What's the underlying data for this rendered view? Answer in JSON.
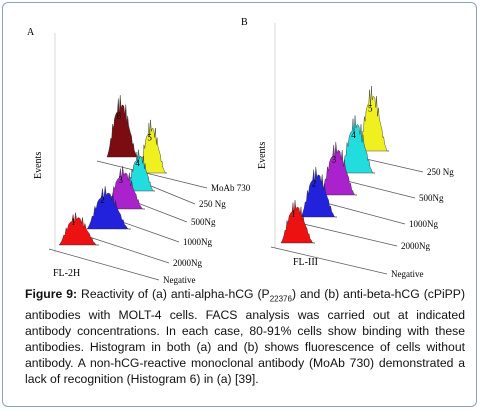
{
  "panel_a": {
    "letter": "A",
    "y_axis_label": "Events",
    "x_axis_label": "FL-2H",
    "histograms": [
      {
        "number": "1",
        "color": "#ee1111",
        "trace_label": "Negative"
      },
      {
        "number": "2",
        "color": "#2222dd",
        "trace_label": "2000Ng"
      },
      {
        "number": "3",
        "color": "#aa22cc",
        "trace_label": "1000Ng"
      },
      {
        "number": "4",
        "color": "#22dddd",
        "trace_label": "500Ng"
      },
      {
        "number": "5",
        "color": "#f0f020",
        "trace_label": "250 Ng"
      },
      {
        "number": "6",
        "color": "#7a0c12",
        "trace_label": "MoAb 730"
      }
    ]
  },
  "panel_b": {
    "letter": "B",
    "y_axis_label": "Events",
    "x_axis_label": "FL-III",
    "histograms": [
      {
        "number": "1",
        "color": "#ee1111",
        "trace_label": "Negative"
      },
      {
        "number": "2",
        "color": "#2222dd",
        "trace_label": "2000Ng"
      },
      {
        "number": "3",
        "color": "#aa22cc",
        "trace_label": "1000Ng"
      },
      {
        "number": "4",
        "color": "#22dddd",
        "trace_label": "500Ng"
      },
      {
        "number": "5",
        "color": "#f0f020",
        "trace_label": "250 Ng"
      }
    ]
  },
  "caption": {
    "figure_label": "Figure 9:",
    "text_part1": " Reactivity of (a) anti-alpha-hCG (P",
    "subscript": "22376",
    "text_part2": ") and (b) anti-beta-hCG (cPiPP) antibodies with MOLT-4 cells. FACS analysis was carried out at indicated antibody concentrations. In each case, 80-91% cells show binding with these antibodies. Histogram in both (a) and (b) shows fluorescence of cells without antibody. A non-hCG-reactive monoclonal antibody (MoAb 730) demonstrated a lack of recognition (Histogram 6) in (a) [39]."
  }
}
